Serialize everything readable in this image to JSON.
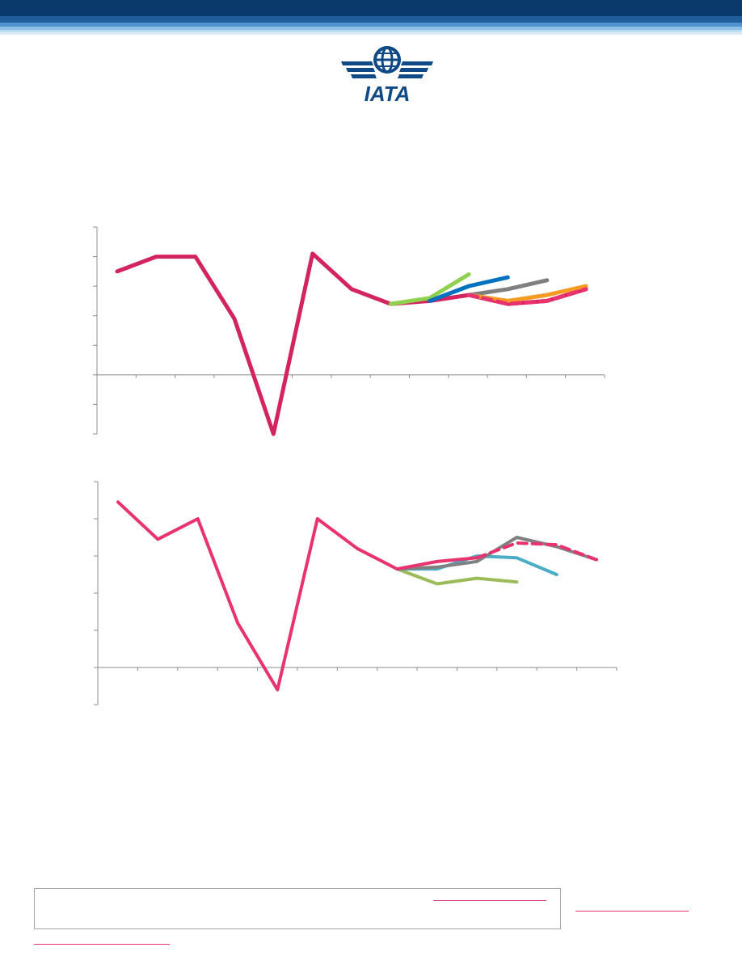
{
  "header": {
    "logo_text": "IATA",
    "colors": {
      "dark": "#0a3a6b",
      "mid": "#1f6fb3",
      "light": "#cfe5f5"
    }
  },
  "chart_data": [
    {
      "type": "line",
      "x": [
        0,
        1,
        2,
        3,
        4,
        5,
        6,
        7,
        8,
        9,
        10,
        11,
        12
      ],
      "ylim": [
        -2,
        5
      ],
      "series": [
        {
          "color": "#d4245f",
          "style": "solid",
          "points": [
            [
              0,
              3.5
            ],
            [
              1,
              4.0
            ],
            [
              2,
              4.0
            ],
            [
              3,
              1.9
            ],
            [
              4,
              -2.0
            ],
            [
              5,
              4.1
            ],
            [
              6,
              2.9
            ],
            [
              7,
              2.4
            ],
            [
              8,
              2.5
            ],
            [
              9,
              2.7
            ],
            [
              10,
              2.4
            ],
            [
              11,
              2.5
            ],
            [
              12,
              2.9
            ]
          ]
        },
        {
          "color": "#8fd14f",
          "style": "solid",
          "points": [
            [
              7,
              2.4
            ],
            [
              8,
              2.6
            ],
            [
              9,
              3.4
            ]
          ]
        },
        {
          "color": "#0070c0",
          "style": "solid",
          "points": [
            [
              8,
              2.5
            ],
            [
              9,
              3.0
            ],
            [
              10,
              3.3
            ]
          ]
        },
        {
          "color": "#7f7f7f",
          "style": "solid",
          "points": [
            [
              9,
              2.7
            ],
            [
              10,
              2.9
            ],
            [
              11,
              3.2
            ]
          ]
        },
        {
          "color": "#f59a23",
          "style": "solid",
          "points": [
            [
              9,
              2.7
            ],
            [
              10,
              2.5
            ],
            [
              11,
              2.7
            ],
            [
              12,
              3.0
            ]
          ]
        },
        {
          "color": "#e8336f",
          "style": "dashed",
          "points": [
            [
              9,
              2.7
            ],
            [
              10,
              2.4
            ],
            [
              11,
              2.5
            ],
            [
              12,
              2.9
            ]
          ]
        }
      ]
    },
    {
      "type": "line",
      "x": [
        0,
        1,
        2,
        3,
        4,
        5,
        6,
        7,
        8,
        9,
        10,
        11,
        12
      ],
      "ylim": [
        -1,
        5
      ],
      "series": [
        {
          "color": "#e8336f",
          "style": "solid",
          "points": [
            [
              0,
              4.45
            ],
            [
              1,
              3.45
            ],
            [
              2,
              4.0
            ],
            [
              3,
              1.2
            ],
            [
              4,
              -0.6
            ],
            [
              5,
              4.0
            ],
            [
              6,
              3.2
            ],
            [
              7,
              2.65
            ]
          ]
        },
        {
          "color": "#9bbb59",
          "style": "solid",
          "points": [
            [
              7,
              2.65
            ],
            [
              8,
              2.25
            ],
            [
              9,
              2.4
            ],
            [
              10,
              2.3
            ]
          ]
        },
        {
          "color": "#4bacc6",
          "style": "solid",
          "points": [
            [
              7,
              2.65
            ],
            [
              8,
              2.65
            ],
            [
              9,
              3.0
            ],
            [
              10,
              2.95
            ],
            [
              11,
              2.5
            ]
          ]
        },
        {
          "color": "#808080",
          "style": "solid",
          "points": [
            [
              7,
              2.65
            ],
            [
              8,
              2.7
            ],
            [
              9,
              2.85
            ],
            [
              10,
              3.5
            ],
            [
              11,
              3.25
            ],
            [
              12,
              2.9
            ]
          ]
        },
        {
          "color": "#e8336f",
          "style": "solid",
          "points": [
            [
              7,
              2.65
            ],
            [
              8,
              2.85
            ],
            [
              9,
              2.95
            ]
          ]
        },
        {
          "color": "#e8336f",
          "style": "dashed",
          "points": [
            [
              9,
              2.95
            ],
            [
              10,
              3.35
            ],
            [
              11,
              3.3
            ],
            [
              12,
              2.9
            ]
          ]
        }
      ]
    }
  ]
}
